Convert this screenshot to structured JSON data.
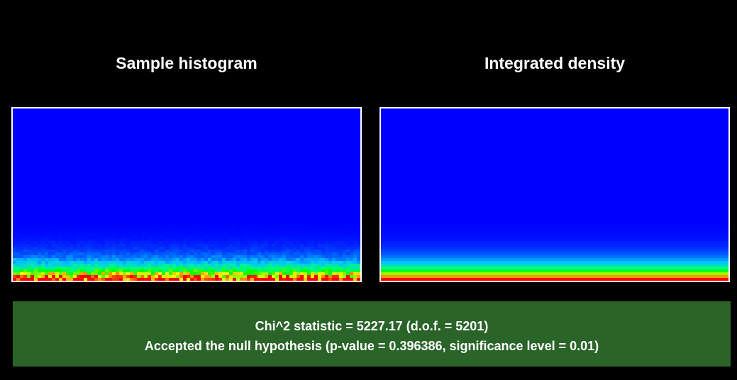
{
  "chart_data": [
    {
      "type": "heatmap",
      "title": "Sample histogram",
      "colormap": [
        "#0000ff",
        "#00c0ff",
        "#00ff80",
        "#00ff00",
        "#ffff00",
        "#ff0000"
      ],
      "row_density": [
        1.0,
        0.88,
        0.72,
        0.55,
        0.4,
        0.29,
        0.21,
        0.16,
        0.12,
        0.09,
        0.07,
        0.05,
        0.04,
        0.03,
        0.02,
        0.015,
        0.01,
        0.008,
        0.006,
        0.004
      ],
      "noise": true
    },
    {
      "type": "heatmap",
      "title": "Integrated density",
      "colormap": [
        "#0000ff",
        "#00c0ff",
        "#00ff80",
        "#00ff00",
        "#ffff00",
        "#ff0000"
      ],
      "row_density": [
        1.0,
        0.88,
        0.72,
        0.55,
        0.4,
        0.29,
        0.21,
        0.16,
        0.12,
        0.09,
        0.07,
        0.05,
        0.04,
        0.03,
        0.02,
        0.015,
        0.01,
        0.008,
        0.006,
        0.004
      ],
      "noise": false
    }
  ],
  "result": {
    "line1": "Chi^2 statistic = 5227.17 (d.o.f. = 5201)",
    "line2": "Accepted the null hypothesis (p-value = 0.396386, significance level = 0.01)",
    "background": "#2a6429"
  }
}
